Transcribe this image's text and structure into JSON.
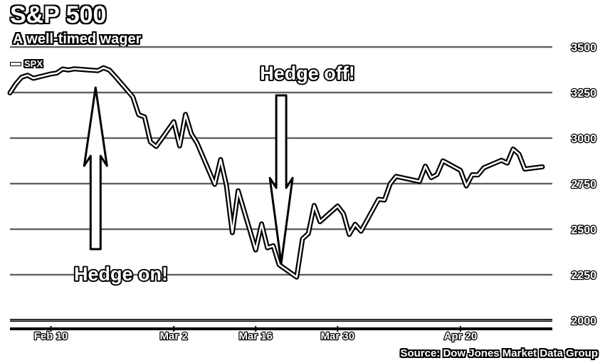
{
  "chart_data": {
    "type": "line",
    "title": "S&P 500",
    "subtitle": "A well-timed wager",
    "legend": [
      "SPX"
    ],
    "legend_position": "top-left",
    "source": "Source: Dow Jones Market Data Group",
    "ylim": [
      2000,
      3500
    ],
    "yticks": [
      2000,
      2250,
      2500,
      2750,
      3000,
      3250,
      3500
    ],
    "ytick_labels": [
      "2000",
      "2250",
      "2500",
      "2750",
      "3000",
      "3250",
      "3500"
    ],
    "y_axis_position": "right",
    "grid": true,
    "x_range": [
      "2020-02-03",
      "2020-05-04"
    ],
    "xticks": [
      {
        "date": "2020-02-10",
        "label": "Feb 10"
      },
      {
        "date": "2020-03-02",
        "label": "Mar 2"
      },
      {
        "date": "2020-03-16",
        "label": "Mar 16"
      },
      {
        "date": "2020-03-30",
        "label": "Mar 30"
      },
      {
        "date": "2020-04-20",
        "label": "Apr 20"
      }
    ],
    "series": [
      {
        "name": "SPX",
        "x": [
          "2020-02-03",
          "2020-02-04",
          "2020-02-05",
          "2020-02-06",
          "2020-02-07",
          "2020-02-10",
          "2020-02-11",
          "2020-02-12",
          "2020-02-13",
          "2020-02-14",
          "2020-02-18",
          "2020-02-19",
          "2020-02-20",
          "2020-02-21",
          "2020-02-24",
          "2020-02-25",
          "2020-02-26",
          "2020-02-27",
          "2020-02-28",
          "2020-03-02",
          "2020-03-03",
          "2020-03-04",
          "2020-03-05",
          "2020-03-06",
          "2020-03-09",
          "2020-03-10",
          "2020-03-11",
          "2020-03-12",
          "2020-03-13",
          "2020-03-16",
          "2020-03-17",
          "2020-03-18",
          "2020-03-19",
          "2020-03-20",
          "2020-03-23",
          "2020-03-24",
          "2020-03-25",
          "2020-03-26",
          "2020-03-27",
          "2020-03-30",
          "2020-03-31",
          "2020-04-01",
          "2020-04-02",
          "2020-04-03",
          "2020-04-06",
          "2020-04-07",
          "2020-04-08",
          "2020-04-09",
          "2020-04-13",
          "2020-04-14",
          "2020-04-15",
          "2020-04-16",
          "2020-04-17",
          "2020-04-20",
          "2020-04-21",
          "2020-04-22",
          "2020-04-23",
          "2020-04-24",
          "2020-04-27",
          "2020-04-28",
          "2020-04-29",
          "2020-04-30",
          "2020-05-01",
          "2020-05-04"
        ],
        "values": [
          3248,
          3297,
          3334,
          3345,
          3328,
          3352,
          3357,
          3379,
          3374,
          3380,
          3370,
          3386,
          3373,
          3338,
          3226,
          3128,
          3116,
          2979,
          2954,
          3090,
          2957,
          3130,
          3024,
          2972,
          2746,
          2882,
          2741,
          2481,
          2711,
          2386,
          2529,
          2398,
          2409,
          2305,
          2237,
          2447,
          2476,
          2630,
          2541,
          2627,
          2585,
          2471,
          2527,
          2489,
          2664,
          2660,
          2750,
          2790,
          2762,
          2846,
          2783,
          2800,
          2875,
          2823,
          2737,
          2799,
          2798,
          2837,
          2878,
          2863,
          2940,
          2912,
          2830,
          2842
        ]
      }
    ],
    "annotations": [
      {
        "text": "Hedge on!",
        "x": "2020-02-18",
        "arrow": "up"
      },
      {
        "text": "Hedge off!",
        "x": "2020-03-20",
        "arrow": "down"
      }
    ]
  }
}
